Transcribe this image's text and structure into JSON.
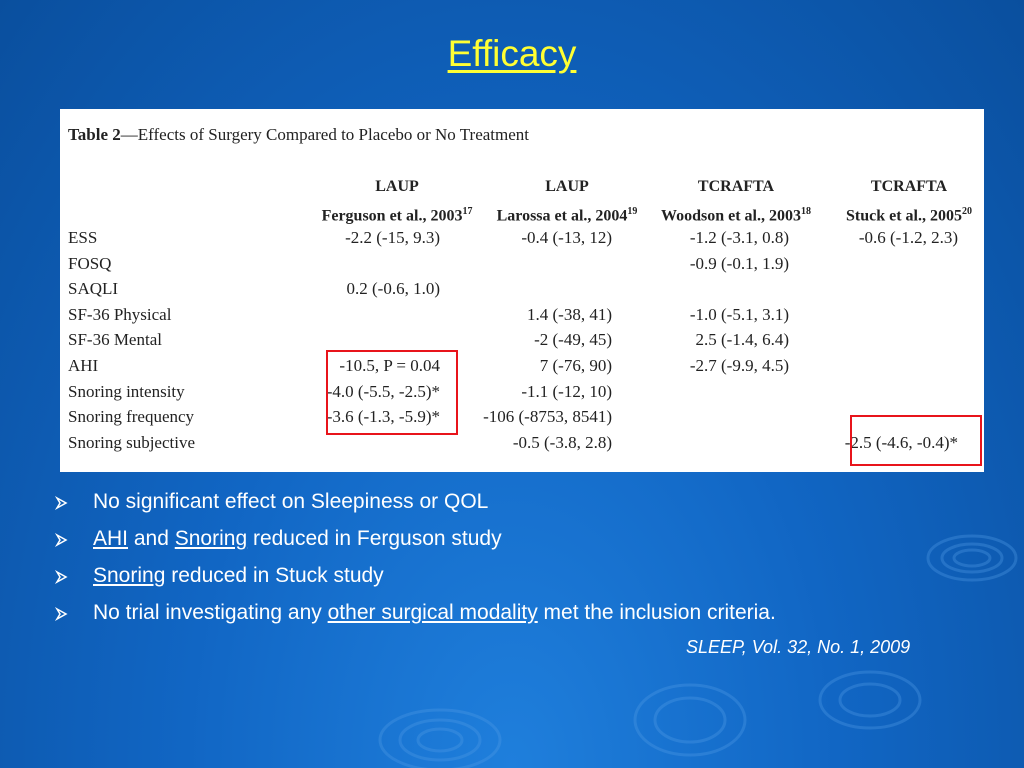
{
  "title": "Efficacy",
  "table": {
    "caption_bold": "Table 2",
    "caption_rest": "—Effects of Surgery Compared to Placebo or No Treatment",
    "columns": [
      {
        "procedure": "LAUP",
        "study": "Ferguson et al., 2003",
        "ref": "17"
      },
      {
        "procedure": "LAUP",
        "study": "Larossa et al., 2004",
        "ref": "19"
      },
      {
        "procedure": "TCRAFTA",
        "study": "Woodson et al., 2003",
        "ref": "18"
      },
      {
        "procedure": "TCRAFTA",
        "study": "Stuck et al., 2005",
        "ref": "20"
      }
    ],
    "rows": [
      {
        "label": "ESS",
        "cells": [
          "-2.2 (-15, 9.3)",
          "-0.4 (-13, 12)",
          "-1.2 (-3.1, 0.8)",
          "-0.6 (-1.2, 2.3)"
        ]
      },
      {
        "label": "FOSQ",
        "cells": [
          "",
          "",
          "-0.9 (-0.1, 1.9)",
          ""
        ]
      },
      {
        "label": "SAQLI",
        "cells": [
          "0.2 (-0.6, 1.0)",
          "",
          "",
          ""
        ]
      },
      {
        "label": "SF-36 Physical",
        "cells": [
          "",
          "1.4 (-38, 41)",
          "-1.0 (-5.1, 3.1)",
          ""
        ]
      },
      {
        "label": "SF-36 Mental",
        "cells": [
          "",
          "-2 (-49, 45)",
          "2.5 (-1.4, 6.4)",
          ""
        ]
      },
      {
        "label": "AHI",
        "cells": [
          "-10.5, P = 0.04",
          "7 (-76, 90)",
          "-2.7 (-9.9, 4.5)",
          ""
        ]
      },
      {
        "label": "Snoring intensity",
        "cells": [
          "-4.0 (-5.5, -2.5)*",
          "-1.1 (-12, 10)",
          "",
          ""
        ]
      },
      {
        "label": "Snoring frequency",
        "cells": [
          "-3.6 (-1.3, -5.9)*",
          "-106 (-8753, 8541)",
          "",
          ""
        ]
      },
      {
        "label": "Snoring subjective",
        "cells": [
          "",
          "-0.5 (-3.8, 2.8)",
          "",
          "-2.5 (-4.6, -0.4)*"
        ]
      }
    ]
  },
  "bullets": [
    {
      "parts": [
        {
          "text": "No significant effect on Sleepiness or QOL",
          "u": false
        }
      ]
    },
    {
      "parts": [
        {
          "text": "AHI",
          "u": true
        },
        {
          "text": " and ",
          "u": false
        },
        {
          "text": "Snoring",
          "u": true
        },
        {
          "text": " reduced in Ferguson study",
          "u": false
        }
      ]
    },
    {
      "parts": [
        {
          "text": "Snoring",
          "u": true
        },
        {
          "text": " reduced in Stuck study",
          "u": false
        }
      ]
    },
    {
      "parts": [
        {
          "text": "No trial investigating any ",
          "u": false
        },
        {
          "text": "other surgical modality",
          "u": true
        },
        {
          "text": " met the inclusion criteria.",
          "u": false
        }
      ]
    }
  ],
  "bullet_icon": "arrow-bullet-icon",
  "citation": "SLEEP, Vol. 32, No. 1, 2009",
  "colors": {
    "title": "#ffff33",
    "highlight": "#e8141b",
    "background": "#1166c4"
  }
}
